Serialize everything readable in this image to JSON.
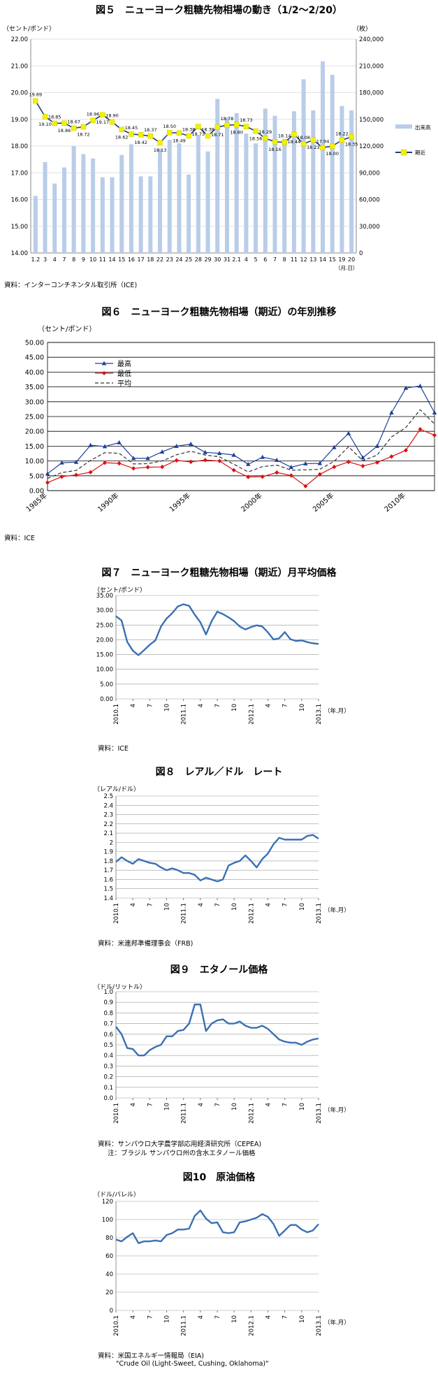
{
  "charts": [
    {
      "title": "図５　ニューヨーク粗糖先物相場の動き（1/2～2/20）",
      "source": "資料：インターコンチネンタル取引所（ICE)",
      "chart_data": {
        "type": "bar+line",
        "ylabel_left": "（セント/ポンド）",
        "ylabel_right": "（枚）",
        "xlabel": "（月.日）",
        "ylim_left": [
          14.0,
          22.0
        ],
        "ylim_right": [
          0,
          240000
        ],
        "yticks_left": [
          "14.00",
          "15.00",
          "16.00",
          "17.00",
          "18.00",
          "19.00",
          "20.00",
          "21.00",
          "22.00"
        ],
        "yticks_right": [
          "0",
          "30,000",
          "60,000",
          "90,000",
          "120,000",
          "150,000",
          "180,000",
          "210,000",
          "240,000"
        ],
        "categories": [
          "1.2",
          "3",
          "4",
          "7",
          "8",
          "9",
          "10",
          "11",
          "14",
          "15",
          "16",
          "17",
          "18",
          "22",
          "23",
          "24",
          "25",
          "28",
          "29",
          "30",
          "31",
          "2.1",
          "4",
          "5",
          "6",
          "7",
          "8",
          "11",
          "12",
          "13",
          "14",
          "15",
          "19",
          "20"
        ],
        "series": [
          {
            "name": "出来高",
            "color": "#b9cde8",
            "values": [
              64000,
              102000,
              78000,
              96000,
              120000,
              111000,
              106000,
              85000,
              85000,
              110000,
              122000,
              86000,
              86000,
              117000,
              127000,
              123000,
              88000,
              132000,
              114000,
              173000,
              152000,
              157000,
              134000,
              123000,
              162000,
              154000,
              128000,
              159000,
              195000,
              160000,
              215000,
              200000,
              165000,
              160000
            ]
          },
          {
            "name": "期近",
            "color": "#1f3a7a",
            "marker": "#f2f200",
            "values": [
              19.69,
              19.1,
              18.85,
              18.86,
              18.67,
              18.72,
              18.96,
              19.17,
              18.9,
              18.62,
              18.45,
              18.42,
              18.37,
              18.13,
              18.5,
              18.49,
              18.38,
              18.73,
              18.38,
              18.71,
              18.78,
              18.8,
              18.73,
              18.56,
              18.29,
              18.16,
              18.14,
              18.44,
              18.08,
              18.23,
              17.94,
              18.0,
              18.22,
              18.35
            ]
          }
        ]
      }
    },
    {
      "title": "図６　ニューヨーク粗糖先物相場（期近）の年別推移",
      "source": "資料：ICE",
      "chart_data": {
        "type": "line",
        "ylabel": "（セント/ポンド）",
        "ylim": [
          0,
          50
        ],
        "yticks": [
          "0.00",
          "5.00",
          "10.00",
          "15.00",
          "20.00",
          "25.00",
          "30.00",
          "35.00",
          "40.00",
          "45.00",
          "50.00"
        ],
        "x": [
          1985,
          1986,
          1987,
          1988,
          1989,
          1990,
          1991,
          1992,
          1993,
          1994,
          1995,
          1996,
          1997,
          1998,
          1999,
          2000,
          2001,
          2002,
          2003,
          2004,
          2005,
          2006,
          2007,
          2008,
          2009,
          2010,
          2011,
          2012
        ],
        "xtick_labels": [
          "1985年",
          "1990年",
          "1995年",
          "2000年",
          "2005年",
          "2010年"
        ],
        "series": [
          {
            "name": "最高",
            "color": "#1f3f99",
            "values": [
              5.7,
              9.4,
              9.6,
              15.3,
              14.9,
              16.2,
              10.9,
              10.9,
              13.1,
              15.0,
              15.7,
              12.9,
              12.6,
              12.0,
              8.9,
              11.3,
              10.3,
              7.9,
              9.1,
              9.2,
              14.6,
              19.3,
              11.1,
              15.0,
              26.3,
              34.6,
              35.3,
              26.3
            ]
          },
          {
            "name": "最低",
            "color": "#dd1111",
            "values": [
              2.7,
              4.7,
              5.3,
              6.2,
              9.4,
              9.2,
              7.5,
              7.9,
              8.0,
              10.2,
              9.7,
              10.3,
              10.0,
              6.9,
              4.6,
              4.7,
              6.1,
              5.1,
              1.5,
              5.5,
              8.0,
              9.7,
              8.3,
              9.5,
              11.5,
              13.6,
              20.7,
              18.7
            ]
          },
          {
            "name": "平均",
            "color": "#333333",
            "dashed": true,
            "values": [
              4.1,
              6.1,
              6.8,
              10.2,
              12.8,
              12.6,
              9.0,
              9.1,
              10.0,
              12.1,
              13.3,
              12.0,
              11.4,
              8.9,
              6.3,
              8.1,
              8.6,
              6.9,
              7.0,
              7.2,
              9.9,
              14.8,
              10.1,
              12.0,
              18.1,
              21.3,
              27.3,
              22.5
            ]
          }
        ]
      }
    },
    {
      "title": "図７　ニューヨーク粗糖先物相場（期近）月平均価格",
      "source": "資料：ICE",
      "chart_data": {
        "type": "line",
        "ylabel": "（セント/ポンド）",
        "xlabel": "（年.月）",
        "ylim": [
          0,
          35
        ],
        "yticks": [
          "0.00",
          "5.00",
          "10.00",
          "15.00",
          "20.00",
          "25.00",
          "30.00",
          "35.00"
        ],
        "xtick_labels": [
          "2010.1",
          "4",
          "7",
          "10",
          "2011.1",
          "4",
          "7",
          "10",
          "2012.1",
          "4",
          "7",
          "10",
          "2013.1"
        ],
        "series": [
          {
            "name": "",
            "color": "#3a70b4",
            "values": [
              28.0,
              26.5,
              19.3,
              16.3,
              14.8,
              16.5,
              18.3,
              19.8,
              24.5,
              27.2,
              29.0,
              31.3,
              32.0,
              31.5,
              28.5,
              25.9,
              21.8,
              26.3,
              29.5,
              28.7,
              27.6,
              26.3,
              24.5,
              23.5,
              24.3,
              24.9,
              24.5,
              22.5,
              20.1,
              20.5,
              22.6,
              20.2,
              19.6,
              19.8,
              19.2,
              18.8,
              18.6
            ]
          }
        ]
      }
    },
    {
      "title": "図８　レアル／ドル　レート",
      "source": "資料：米連邦準備理事会（FRB)",
      "chart_data": {
        "type": "line",
        "ylabel": "（レアル/ドル）",
        "xlabel": "（年.月）",
        "ylim": [
          1.4,
          2.5
        ],
        "yticks": [
          "1.4",
          "1.5",
          "1.6",
          "1.7",
          "1.8",
          "1.9",
          "2",
          "2.1",
          "2.2",
          "2.3",
          "2.4",
          "2.5"
        ],
        "xtick_labels": [
          "2010.1",
          "4",
          "7",
          "10",
          "2011.1",
          "4",
          "7",
          "10",
          "2012.1",
          "4",
          "7",
          "10",
          "2013.1"
        ],
        "series": [
          {
            "name": "",
            "color": "#3a70b4",
            "values": [
              1.79,
              1.84,
              1.8,
              1.77,
              1.82,
              1.8,
              1.78,
              1.77,
              1.73,
              1.7,
              1.72,
              1.7,
              1.67,
              1.67,
              1.65,
              1.59,
              1.62,
              1.6,
              1.58,
              1.6,
              1.75,
              1.78,
              1.8,
              1.86,
              1.8,
              1.73,
              1.82,
              1.88,
              1.98,
              2.05,
              2.03,
              2.03,
              2.03,
              2.03,
              2.07,
              2.08,
              2.04
            ]
          }
        ]
      }
    },
    {
      "title": "図９　エタノール価格",
      "source": "資料：サンパウロ大学農学部応用経済研究所（CEPEA)",
      "note": "注：ブラジル サンパウロ州の含水エタノール価格",
      "chart_data": {
        "type": "line",
        "ylabel": "（ドル/リットル）",
        "xlabel": "（年.月）",
        "ylim": [
          0,
          1.0
        ],
        "yticks": [
          "0.0",
          "0.1",
          "0.2",
          "0.3",
          "0.4",
          "0.5",
          "0.6",
          "0.7",
          "0.8",
          "0.9",
          "1.0"
        ],
        "xtick_labels": [
          "2010.1",
          "4",
          "7",
          "10",
          "2011.1",
          "4",
          "7",
          "10",
          "2012.1",
          "4",
          "7",
          "10",
          "2013.1"
        ],
        "series": [
          {
            "name": "",
            "color": "#3a70b4",
            "values": [
              0.67,
              0.6,
              0.47,
              0.46,
              0.4,
              0.4,
              0.45,
              0.48,
              0.5,
              0.58,
              0.58,
              0.63,
              0.64,
              0.7,
              0.88,
              0.88,
              0.63,
              0.7,
              0.73,
              0.74,
              0.7,
              0.7,
              0.72,
              0.68,
              0.66,
              0.66,
              0.68,
              0.65,
              0.6,
              0.55,
              0.53,
              0.52,
              0.52,
              0.5,
              0.53,
              0.55,
              0.56
            ]
          }
        ]
      }
    },
    {
      "title": "図10　原油価格",
      "source": "資料：米国エネルギー情報局（EIA)",
      "note": "\"Crude Oil (Light-Sweet, Cushing, Oklahoma)\"",
      "chart_data": {
        "type": "line",
        "ylabel": "（ドル/バレル）",
        "xlabel": "（年.月）",
        "ylim": [
          0,
          120
        ],
        "yticks": [
          "0",
          "20",
          "40",
          "60",
          "80",
          "100",
          "120"
        ],
        "xtick_labels": [
          "2010.1",
          "4",
          "7",
          "10",
          "2011.1",
          "4",
          "7",
          "10",
          "2012.1",
          "4",
          "7",
          "10",
          "2013.1"
        ],
        "series": [
          {
            "name": "",
            "color": "#3a70b4",
            "values": [
              78,
              76,
              81,
              85,
              74,
              76,
              76,
              77,
              76,
              83,
              85,
              89,
              89,
              90,
              104,
              110,
              101,
              96,
              97,
              86,
              85,
              86,
              97,
              98,
              100,
              102,
              106,
              103,
              95,
              82,
              88,
              94,
              94,
              89,
              86,
              88,
              95
            ]
          }
        ]
      }
    }
  ]
}
